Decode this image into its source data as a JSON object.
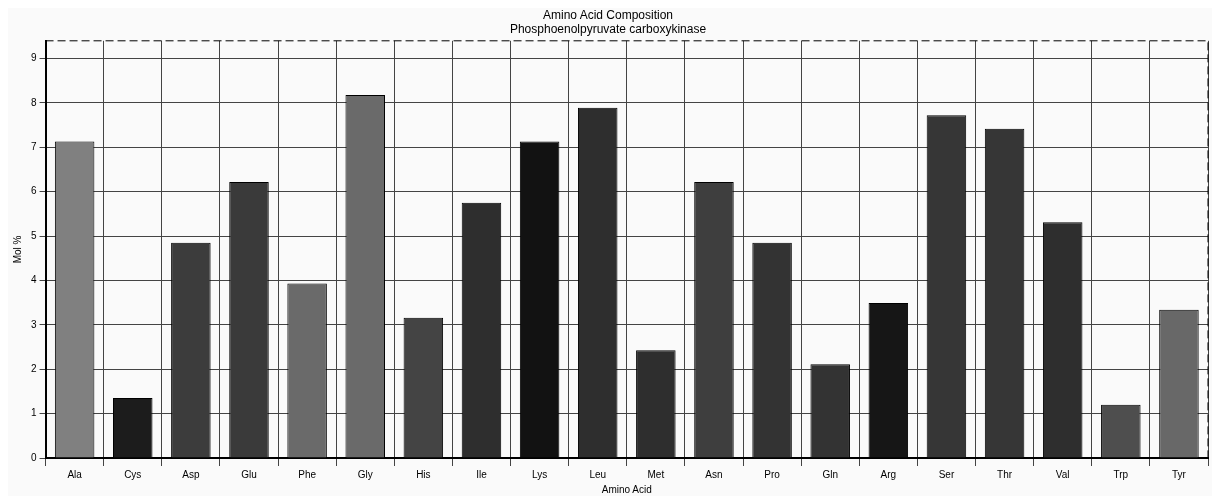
{
  "chart_data": {
    "type": "bar",
    "title": "Amino Acid Composition",
    "subtitle": "Phosphoenolpyruvate carboxykinase",
    "xlabel": "Amino Acid",
    "ylabel": "Mol %",
    "categories": [
      "Ala",
      "Cys",
      "Asp",
      "Glu",
      "Phe",
      "Gly",
      "His",
      "Ile",
      "Lys",
      "Leu",
      "Met",
      "Asn",
      "Pro",
      "Gln",
      "Arg",
      "Ser",
      "Thr",
      "Val",
      "Trp",
      "Tyr"
    ],
    "values": [
      7.13,
      1.35,
      4.85,
      6.22,
      3.93,
      8.18,
      3.16,
      5.75,
      7.13,
      7.89,
      2.43,
      6.22,
      4.85,
      2.11,
      3.49,
      7.72,
      7.42,
      5.31,
      1.2,
      3.34
    ],
    "colors": [
      "#808080",
      "#1c1c1c",
      "#3c3c3c",
      "#3a3a3a",
      "#6a6a6a",
      "#6a6a6a",
      "#444444",
      "#2e2e2e",
      "#121212",
      "#2e2e2e",
      "#2e2e2e",
      "#3e3e3e",
      "#333333",
      "#333333",
      "#161616",
      "#363636",
      "#363636",
      "#2e2e2e",
      "#4e4e4e",
      "#686868"
    ],
    "ylim": [
      0,
      9.4
    ],
    "yticks": [
      0,
      1,
      2,
      3,
      4,
      5,
      6,
      7,
      8,
      9
    ],
    "grid": true,
    "legend": false
  }
}
